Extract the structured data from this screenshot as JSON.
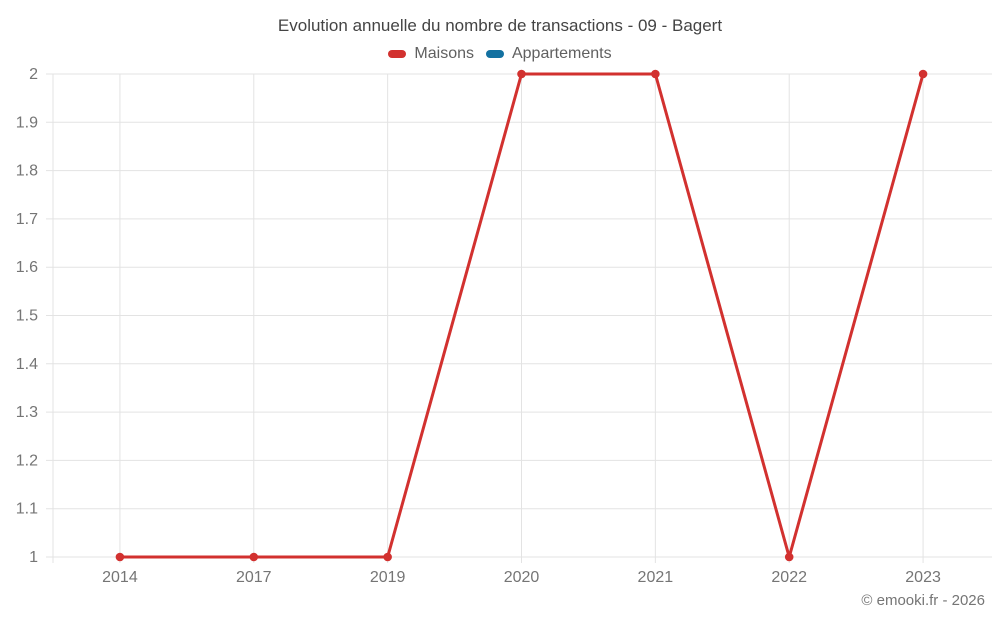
{
  "chart": {
    "title": "Evolution annuelle du nombre de transactions - 09 - Bagert",
    "legend": [
      {
        "label": "Maisons",
        "color": "#d2312f"
      },
      {
        "label": "Appartements",
        "color": "#1371a1"
      }
    ],
    "footer": "© emooki.fr - 2026"
  },
  "chart_data": {
    "type": "line",
    "title": "Evolution annuelle du nombre de transactions - 09 - Bagert",
    "categories": [
      "2014",
      "2017",
      "2019",
      "2020",
      "2021",
      "2022",
      "2023"
    ],
    "series": [
      {
        "name": "Maisons",
        "color": "#d2312f",
        "values": [
          1,
          1,
          1,
          2,
          2,
          1,
          2
        ]
      },
      {
        "name": "Appartements",
        "color": "#1371a1",
        "values": []
      }
    ],
    "xlabel": "",
    "ylabel": "",
    "ylim": [
      1,
      2
    ],
    "ytick_step": 0.1,
    "grid": true,
    "legend_position": "top",
    "marker": "circle",
    "colors": {
      "grid": "#e3e3e3",
      "tick_label": "#757575",
      "title": "#444444",
      "legend_text": "#606060"
    }
  }
}
